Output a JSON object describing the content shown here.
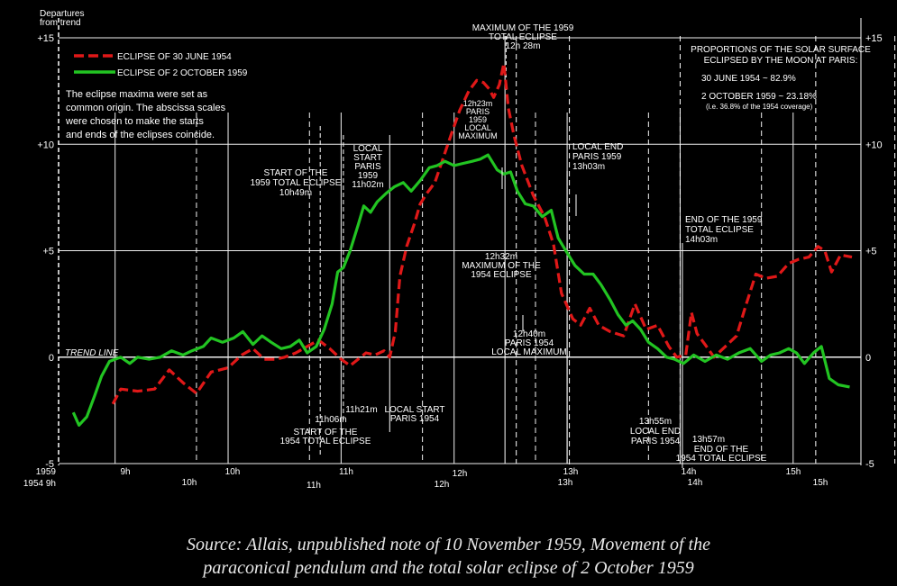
{
  "chart_data": {
    "type": "line",
    "ylabel_lines": [
      "Departures",
      "from trend"
    ],
    "ylim": [
      -5,
      15
    ],
    "yticks": [
      {
        "value": 15,
        "left": "+15",
        "right": "+15"
      },
      {
        "value": 10,
        "left": "+10",
        "right": "+10"
      },
      {
        "value": 5,
        "left": "+5",
        "right": "+5"
      },
      {
        "value": 0,
        "left": "0",
        "right": "0"
      },
      {
        "value": -5,
        "left": "-5",
        "right": "-5"
      }
    ],
    "trend_line_label": "TREND LINE",
    "axis_start_labels": [
      "1959",
      "1954 9h"
    ],
    "x_ticks_1959": [
      "9h",
      "10h",
      "11h",
      "12h",
      "13h",
      "14h",
      "15h"
    ],
    "x_ticks_1954": [
      "10h",
      "11h",
      "12h",
      "13h",
      "14h",
      "15h"
    ],
    "legend": [
      {
        "name": "ECLIPSE OF 30 JUNE 1954",
        "color": "#e01818",
        "dash": true
      },
      {
        "name": "ECLIPSE OF 2 OCTOBER 1959",
        "color": "#22c422",
        "dash": false
      }
    ],
    "note_lines": [
      "The eclipse maxima were set as",
      "common origin. The abscissa scales",
      "were chosen to make the starts",
      "and ends of the eclipses coincide."
    ],
    "proportions_lines": [
      "PROPORTIONS OF THE SOLAR SURFACE",
      "ECLIPSED BY THE MOON AT PARIS:",
      "30 JUNE 1954 ~ 82.9%",
      "2 OCTOBER 1959 ~ 23.18%",
      "(i.e. 36.8% of the 1954 coverage)"
    ],
    "annotations": [
      {
        "lines": [
          "MAXIMUM OF THE 1959",
          "TOTAL ECLIPSE",
          "12h 28m"
        ]
      },
      {
        "lines": [
          "START OF THE",
          "1959 TOTAL ECLIPSE",
          "10h49m"
        ]
      },
      {
        "lines": [
          "LOCAL",
          "START",
          "PARIS",
          "1959",
          "11h02m"
        ]
      },
      {
        "lines": [
          "12h23m",
          "PARIS",
          "1959",
          "LOCAL",
          "MAXIMUM"
        ]
      },
      {
        "lines": [
          "LOCAL END",
          "PARIS 1959",
          "13h03m"
        ]
      },
      {
        "lines": [
          "END OF THE 1959",
          "TOTAL ECLIPSE",
          "14h03m"
        ]
      },
      {
        "lines": [
          "12h32m",
          "MAXIMUM OF THE",
          "1954 ECLIPSE"
        ]
      },
      {
        "lines": [
          "12h40m",
          "PARIS 1954",
          "LOCAL MAXIMUM"
        ]
      },
      {
        "lines": [
          "11h06m"
        ]
      },
      {
        "lines": [
          "START OF THE",
          "1954 TOTAL ECLIPSE"
        ]
      },
      {
        "lines": [
          "11h21m"
        ]
      },
      {
        "lines": [
          "LOCAL START",
          "PARIS 1954"
        ]
      },
      {
        "lines": [
          "13h55m",
          "LOCAL END",
          "PARIS 1954"
        ]
      },
      {
        "lines": [
          "13h57m"
        ]
      },
      {
        "lines": [
          "END OF THE",
          "1954 TOTAL ECLIPSE"
        ]
      }
    ],
    "grid": true,
    "series": [
      {
        "name": "ECLIPSE OF 30 JUNE 1954",
        "color": "#e01818",
        "x_unit": "hours 1954",
        "points": [
          [
            8.98,
            -2.2
          ],
          [
            9.05,
            -1.5
          ],
          [
            9.2,
            -1.6
          ],
          [
            9.35,
            -1.5
          ],
          [
            9.48,
            -0.6
          ],
          [
            9.6,
            -1.2
          ],
          [
            9.72,
            -1.7
          ],
          [
            9.85,
            -0.7
          ],
          [
            10.0,
            -0.5
          ],
          [
            10.12,
            0.1
          ],
          [
            10.22,
            0.4
          ],
          [
            10.32,
            -0.1
          ],
          [
            10.42,
            -0.1
          ],
          [
            10.5,
            0.0
          ],
          [
            10.6,
            0.2
          ],
          [
            10.7,
            0.5
          ],
          [
            10.8,
            0.8
          ],
          [
            10.9,
            0.4
          ],
          [
            11.0,
            -0.1
          ],
          [
            11.08,
            -0.4
          ],
          [
            11.15,
            -0.1
          ],
          [
            11.22,
            0.2
          ],
          [
            11.3,
            0.1
          ],
          [
            11.38,
            0.3
          ],
          [
            11.43,
            0.0
          ],
          [
            11.48,
            1.2
          ],
          [
            11.52,
            3.8
          ],
          [
            11.58,
            5.2
          ],
          [
            11.65,
            6.3
          ],
          [
            11.7,
            7.2
          ],
          [
            11.76,
            7.7
          ],
          [
            11.83,
            8.2
          ],
          [
            11.9,
            9.3
          ],
          [
            11.97,
            10.4
          ],
          [
            12.05,
            11.6
          ],
          [
            12.13,
            12.5
          ],
          [
            12.2,
            13.0
          ],
          [
            12.26,
            12.9
          ],
          [
            12.31,
            12.6
          ],
          [
            12.35,
            12.2
          ],
          [
            12.4,
            12.8
          ],
          [
            12.44,
            13.8
          ],
          [
            12.48,
            11.7
          ],
          [
            12.53,
            10.4
          ],
          [
            12.6,
            9.0
          ],
          [
            12.7,
            7.6
          ],
          [
            12.8,
            6.6
          ],
          [
            12.88,
            5.3
          ],
          [
            12.95,
            3.0
          ],
          [
            13.05,
            1.8
          ],
          [
            13.12,
            1.5
          ],
          [
            13.2,
            2.3
          ],
          [
            13.28,
            1.5
          ],
          [
            13.38,
            1.2
          ],
          [
            13.5,
            1.0
          ],
          [
            13.6,
            2.5
          ],
          [
            13.7,
            1.3
          ],
          [
            13.8,
            1.5
          ],
          [
            13.9,
            0.5
          ],
          [
            13.97,
            0.0
          ],
          [
            14.05,
            0.1
          ],
          [
            14.1,
            2.1
          ],
          [
            14.15,
            1.1
          ],
          [
            14.22,
            0.6
          ],
          [
            14.3,
            0.0
          ],
          [
            14.4,
            0.5
          ],
          [
            14.5,
            1.0
          ],
          [
            14.58,
            2.4
          ],
          [
            14.67,
            3.9
          ],
          [
            14.76,
            3.7
          ],
          [
            14.86,
            3.8
          ],
          [
            14.96,
            4.4
          ],
          [
            15.05,
            4.6
          ],
          [
            15.14,
            4.7
          ],
          [
            15.22,
            5.2
          ],
          [
            15.28,
            5.0
          ],
          [
            15.34,
            4.0
          ],
          [
            15.42,
            4.8
          ],
          [
            15.52,
            4.7
          ]
        ]
      },
      {
        "name": "ECLIPSE OF 2 OCTOBER 1959",
        "color": "#22c422",
        "x_unit": "hours 1959",
        "points": [
          [
            8.63,
            -2.6
          ],
          [
            8.68,
            -3.2
          ],
          [
            8.75,
            -2.8
          ],
          [
            8.82,
            -1.8
          ],
          [
            8.88,
            -0.9
          ],
          [
            8.95,
            -0.2
          ],
          [
            9.05,
            0.0
          ],
          [
            9.13,
            -0.3
          ],
          [
            9.2,
            0.0
          ],
          [
            9.3,
            -0.1
          ],
          [
            9.4,
            0.0
          ],
          [
            9.5,
            0.3
          ],
          [
            9.6,
            0.1
          ],
          [
            9.68,
            0.3
          ],
          [
            9.78,
            0.5
          ],
          [
            9.85,
            0.9
          ],
          [
            9.95,
            0.7
          ],
          [
            10.05,
            0.9
          ],
          [
            10.13,
            1.2
          ],
          [
            10.22,
            0.6
          ],
          [
            10.3,
            1.0
          ],
          [
            10.38,
            0.7
          ],
          [
            10.47,
            0.4
          ],
          [
            10.55,
            0.5
          ],
          [
            10.63,
            0.8
          ],
          [
            10.7,
            0.2
          ],
          [
            10.78,
            0.5
          ],
          [
            10.85,
            1.3
          ],
          [
            10.92,
            2.5
          ],
          [
            10.97,
            4.0
          ],
          [
            11.02,
            4.2
          ],
          [
            11.08,
            5.0
          ],
          [
            11.15,
            6.2
          ],
          [
            11.2,
            7.1
          ],
          [
            11.26,
            6.8
          ],
          [
            11.32,
            7.3
          ],
          [
            11.4,
            7.7
          ],
          [
            11.47,
            8.0
          ],
          [
            11.55,
            8.2
          ],
          [
            11.62,
            7.8
          ],
          [
            11.7,
            8.3
          ],
          [
            11.78,
            8.9
          ],
          [
            11.85,
            9.0
          ],
          [
            11.92,
            9.2
          ],
          [
            12.0,
            9.0
          ],
          [
            12.08,
            9.1
          ],
          [
            12.16,
            9.2
          ],
          [
            12.23,
            9.3
          ],
          [
            12.3,
            9.5
          ],
          [
            12.38,
            8.8
          ],
          [
            12.44,
            8.6
          ],
          [
            12.5,
            8.7
          ],
          [
            12.56,
            7.8
          ],
          [
            12.63,
            7.2
          ],
          [
            12.7,
            7.1
          ],
          [
            12.78,
            6.6
          ],
          [
            12.86,
            6.9
          ],
          [
            12.92,
            5.6
          ],
          [
            13.0,
            4.9
          ],
          [
            13.07,
            4.3
          ],
          [
            13.15,
            3.9
          ],
          [
            13.23,
            3.9
          ],
          [
            13.3,
            3.4
          ],
          [
            13.38,
            2.7
          ],
          [
            13.45,
            2.0
          ],
          [
            13.52,
            1.5
          ],
          [
            13.58,
            1.7
          ],
          [
            13.65,
            1.3
          ],
          [
            13.72,
            0.7
          ],
          [
            13.8,
            0.4
          ],
          [
            13.88,
            0.0
          ],
          [
            13.95,
            -0.1
          ],
          [
            14.03,
            -0.3
          ],
          [
            14.12,
            0.1
          ],
          [
            14.22,
            -0.2
          ],
          [
            14.32,
            0.1
          ],
          [
            14.42,
            -0.1
          ],
          [
            14.52,
            0.2
          ],
          [
            14.62,
            0.4
          ],
          [
            14.72,
            -0.2
          ],
          [
            14.8,
            0.1
          ],
          [
            14.88,
            0.2
          ],
          [
            14.96,
            0.4
          ],
          [
            15.03,
            0.2
          ],
          [
            15.1,
            -0.3
          ],
          [
            15.18,
            0.2
          ],
          [
            15.25,
            0.5
          ],
          [
            15.32,
            -1.0
          ],
          [
            15.4,
            -1.3
          ],
          [
            15.5,
            -1.4
          ]
        ]
      }
    ]
  },
  "caption_lines": [
    "Source: Allais, unpublished note of 10 November 1959, Movement of the",
    "paraconical pendulum and the total solar eclipse of 2 October 1959"
  ]
}
